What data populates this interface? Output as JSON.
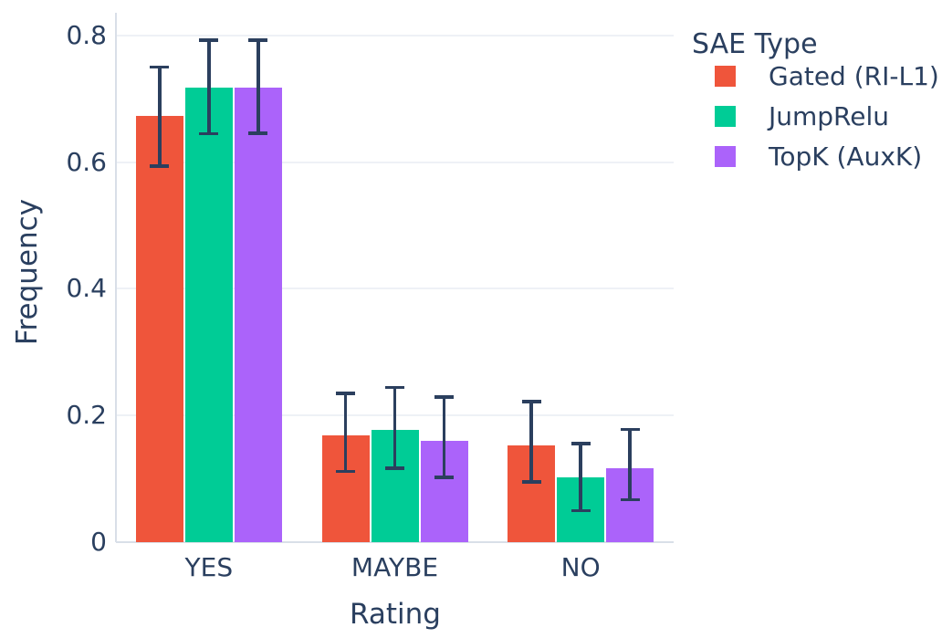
{
  "chart_data": {
    "type": "bar",
    "title": "",
    "xlabel": "Rating",
    "ylabel": "Frequency",
    "legend_title": "SAE Type",
    "legend_position": "top-right",
    "grid": true,
    "background": "#ffffff",
    "text_color": "#2a3f5f",
    "error_bar_color": "#2b3f5e",
    "gridline_color": "#eef1f6",
    "axisline_color": "#d9dfe8",
    "categories": [
      "YES",
      "MAYBE",
      "NO"
    ],
    "yticks": [
      0,
      0.2,
      0.4,
      0.6,
      0.8
    ],
    "ytick_labels": [
      "0",
      "0.2",
      "0.4",
      "0.6",
      "0.8"
    ],
    "ylim": [
      0,
      0.836
    ],
    "series": [
      {
        "name": "Gated (RI-L1)",
        "color": "#EF553B",
        "values": [
          0.673,
          0.169,
          0.153
        ],
        "error_high": [
          0.75,
          0.235,
          0.222
        ],
        "error_low": [
          0.594,
          0.112,
          0.095
        ]
      },
      {
        "name": "JumpRelu",
        "color": "#00CC96",
        "values": [
          0.718,
          0.177,
          0.102
        ],
        "error_high": [
          0.793,
          0.244,
          0.156
        ],
        "error_low": [
          0.645,
          0.117,
          0.05
        ]
      },
      {
        "name": "TopK (AuxK)",
        "color": "#AB63FA",
        "values": [
          0.718,
          0.16,
          0.117
        ],
        "error_high": [
          0.793,
          0.229,
          0.178
        ],
        "error_low": [
          0.646,
          0.102,
          0.067
        ]
      }
    ]
  }
}
